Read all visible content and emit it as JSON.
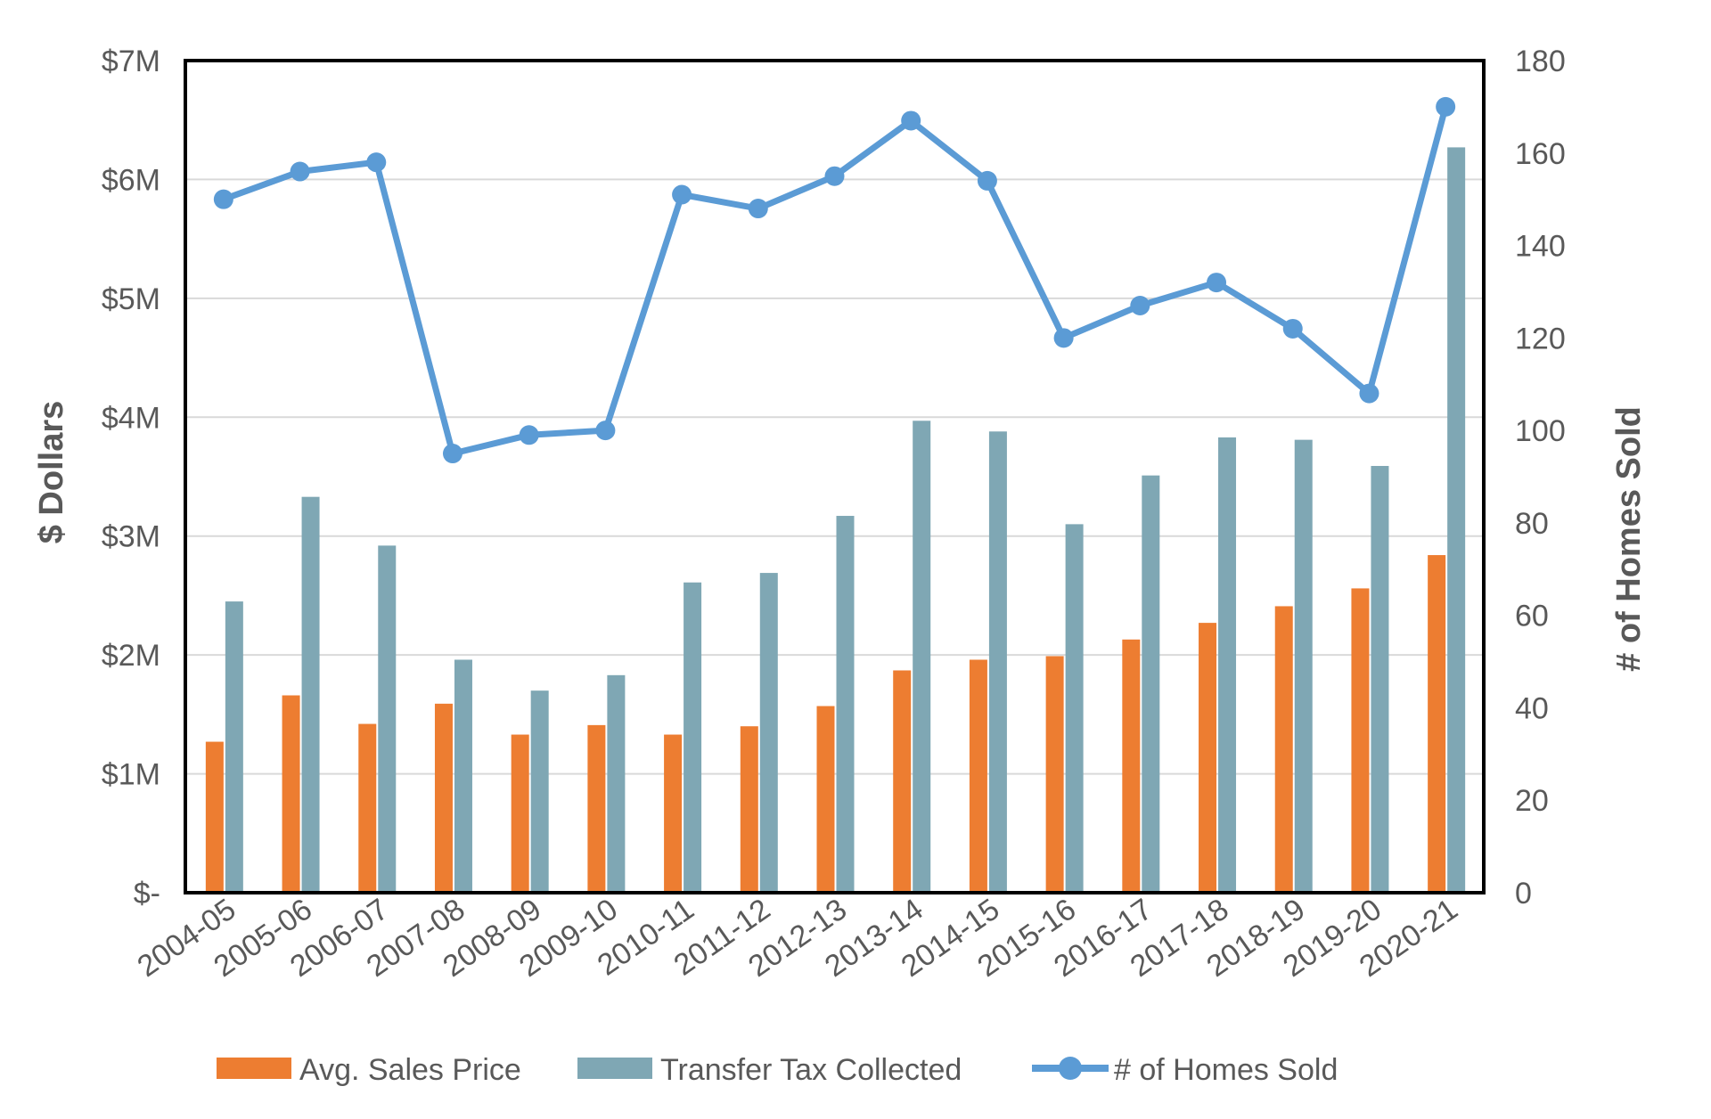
{
  "chart_data": {
    "type": "bar",
    "categories": [
      "2004-05",
      "2005-06",
      "2006-07",
      "2007-08",
      "2008-09",
      "2009-10",
      "2010-11",
      "2011-12",
      "2012-13",
      "2013-14",
      "2014-15",
      "2015-16",
      "2016-17",
      "2017-18",
      "2018-19",
      "2019-20",
      "2020-21"
    ],
    "series": [
      {
        "name": "Avg. Sales Price",
        "type": "bar",
        "axis": "left",
        "color": "#ED7D31",
        "values": [
          1.27,
          1.66,
          1.42,
          1.59,
          1.33,
          1.41,
          1.33,
          1.4,
          1.57,
          1.87,
          1.96,
          1.99,
          2.13,
          2.27,
          2.41,
          2.56,
          2.84
        ]
      },
      {
        "name": "Transfer Tax Collected",
        "type": "bar",
        "axis": "left",
        "color": "#7FA7B4",
        "values": [
          2.45,
          3.33,
          2.92,
          1.96,
          1.7,
          1.83,
          2.61,
          2.69,
          3.17,
          3.97,
          3.88,
          3.1,
          3.51,
          3.83,
          3.81,
          3.59,
          6.27
        ]
      },
      {
        "name": "# of Homes Sold",
        "type": "line",
        "axis": "right",
        "color": "#5B9BD5",
        "values": [
          150,
          156,
          158,
          95,
          99,
          100,
          151,
          148,
          155,
          167,
          154,
          120,
          127,
          132,
          122,
          108,
          170
        ]
      }
    ],
    "y_left": {
      "label": "$ Dollars",
      "min": 0,
      "max": 7,
      "ticks": [
        0,
        1,
        2,
        3,
        4,
        5,
        6,
        7
      ],
      "tick_labels": [
        "$-",
        "$1M",
        "$2M",
        "$3M",
        "$4M",
        "$5M",
        "$6M",
        "$7M"
      ]
    },
    "y_right": {
      "label": "# of Homes Sold",
      "min": 0,
      "max": 180,
      "ticks": [
        0,
        20,
        40,
        60,
        80,
        100,
        120,
        140,
        160,
        180
      ]
    },
    "grid": true,
    "legend": "bottom"
  }
}
